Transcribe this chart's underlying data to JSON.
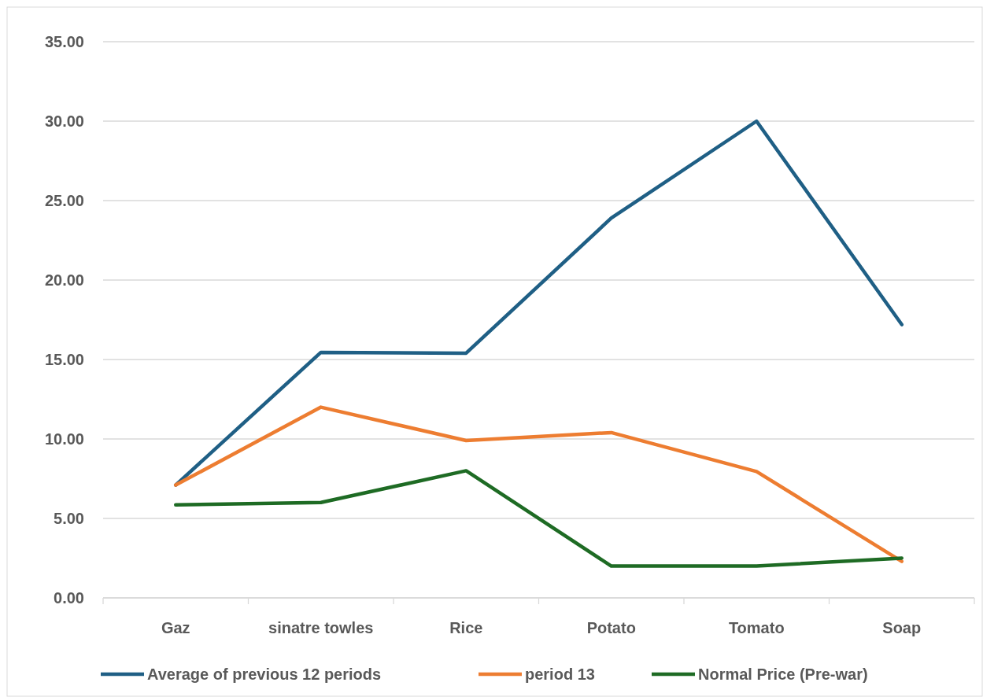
{
  "chart_data": {
    "type": "line",
    "categories": [
      "Gaz",
      "sinatre towles",
      "Rice",
      "Potato",
      "Tomato",
      "Soap"
    ],
    "series": [
      {
        "name": "Average of previous 12 periods",
        "color": "#1f5f85",
        "values": [
          7.1,
          15.45,
          15.4,
          23.9,
          30,
          17.2
        ]
      },
      {
        "name": "period 13",
        "color": "#ed7d31",
        "values": [
          7.1,
          12,
          9.9,
          10.4,
          7.95,
          2.3
        ]
      },
      {
        "name": "Normal Price (Pre-war)",
        "color": "#1e6b24",
        "values": [
          5.85,
          6.0,
          8.0,
          2.0,
          2.0,
          2.5
        ]
      }
    ],
    "ylim": [
      0,
      35
    ],
    "yticks": [
      {
        "value": 0,
        "label": "0.00"
      },
      {
        "value": 5,
        "label": "5.00"
      },
      {
        "value": 10,
        "label": "10.00"
      },
      {
        "value": 15,
        "label": "15.00"
      },
      {
        "value": 20,
        "label": "20.00"
      },
      {
        "value": 25,
        "label": "25.00"
      },
      {
        "value": 30,
        "label": "30.00"
      },
      {
        "value": 35,
        "label": "35.00"
      }
    ],
    "grid": "y",
    "legend": "bottom",
    "marker": "none",
    "line_style": "solid"
  }
}
